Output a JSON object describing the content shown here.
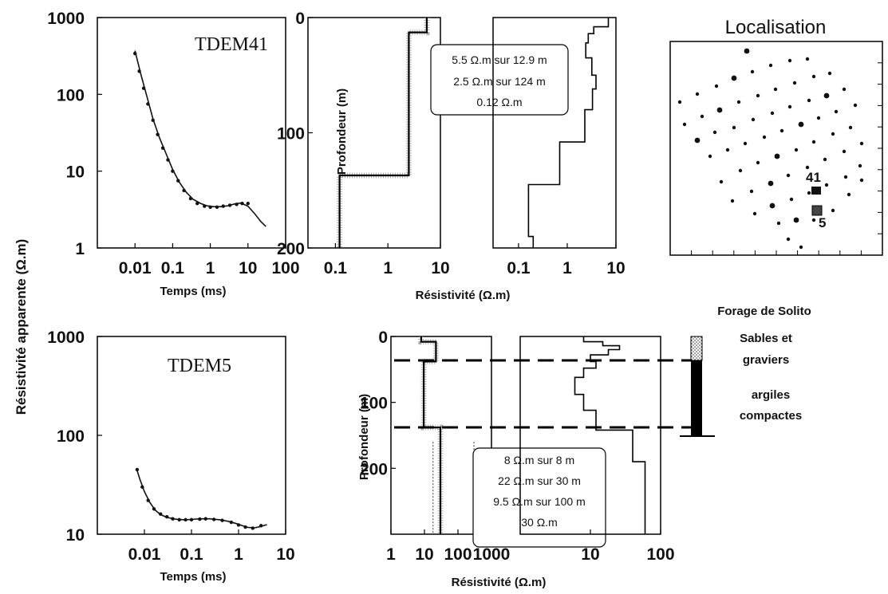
{
  "figure": {
    "ylabel_left": "Résistivité apparente (Ω.m)",
    "top_resistivity_label": "Résistivité  (Ω.m)",
    "bottom_resistivity_label": "Résistivité  (Ω.m)"
  },
  "localisation": {
    "title": "Localisation",
    "labels": [
      "41",
      "5"
    ]
  },
  "forage": {
    "title": "Forage de Solito",
    "layer1": [
      "Sables et",
      "graviers"
    ],
    "layer2": [
      "argiles",
      "compactes"
    ]
  },
  "chart_data": [
    {
      "id": "tdem41-sounding",
      "type": "line",
      "title": "TDEM41",
      "xlabel": "Temps (ms)",
      "ylabel": "Résistivité apparente (Ω.m)",
      "xscale": "log",
      "yscale": "log",
      "xlim": [
        0.001,
        100
      ],
      "ylim": [
        1,
        1000
      ],
      "xticks": [
        "0.01",
        "0.1",
        "1",
        "10",
        "100"
      ],
      "yticks": [
        "1",
        "10",
        "100",
        "1000"
      ],
      "series": [
        {
          "style": "points",
          "x": [
            0.01,
            0.013,
            0.017,
            0.022,
            0.03,
            0.04,
            0.055,
            0.075,
            0.1,
            0.14,
            0.2,
            0.3,
            0.45,
            0.7,
            1,
            1.5,
            2.2,
            3.3,
            5,
            7,
            10
          ],
          "y": [
            340,
            200,
            120,
            75,
            46,
            30,
            20,
            14,
            10,
            7.5,
            5.6,
            4.4,
            3.8,
            3.5,
            3.4,
            3.4,
            3.5,
            3.6,
            3.7,
            3.8,
            3.8
          ]
        },
        {
          "style": "line",
          "x": [
            0.01,
            0.014,
            0.02,
            0.03,
            0.045,
            0.07,
            0.1,
            0.15,
            0.23,
            0.35,
            0.55,
            0.8,
            1.2,
            2,
            3,
            4.5,
            6.5,
            10,
            15,
            22,
            30
          ],
          "y": [
            370,
            190,
            100,
            48,
            27,
            16,
            10.5,
            7.2,
            5.3,
            4.3,
            3.8,
            3.55,
            3.45,
            3.45,
            3.55,
            3.75,
            3.85,
            3.5,
            2.8,
            2.2,
            1.9
          ]
        }
      ]
    },
    {
      "id": "tdem41-model",
      "type": "line",
      "xlabel": "Résistivité  (Ω.m)",
      "ylabel": "Profondeur (m)",
      "xscale": "log",
      "xlim": [
        0.03,
        10
      ],
      "ylim": [
        200,
        0
      ],
      "xticks": [
        "0.1",
        "1",
        "10"
      ],
      "yticks": [
        "0",
        "100",
        "200"
      ],
      "annotation": [
        "5.5 Ω.m sur 12.9 m",
        "2.5 Ω.m sur 124 m",
        "0.12 Ω.m"
      ],
      "layers": [
        {
          "rho": 5.5,
          "top": 0,
          "bottom": 12.9
        },
        {
          "rho": 2.5,
          "top": 12.9,
          "bottom": 137
        },
        {
          "rho": 0.12,
          "top": 137,
          "bottom": 200
        }
      ]
    },
    {
      "id": "tdem41-multilayer",
      "type": "line",
      "xscale": "log",
      "xlim": [
        0.03,
        10
      ],
      "ylim": [
        200,
        0
      ],
      "xticks": [
        "0.1",
        "1",
        "10"
      ],
      "steps": [
        {
          "rho": 7,
          "top": 0,
          "bottom": 8
        },
        {
          "rho": 3.5,
          "top": 8,
          "bottom": 14
        },
        {
          "rho": 2.7,
          "top": 14,
          "bottom": 22
        },
        {
          "rho": 2.4,
          "top": 22,
          "bottom": 35
        },
        {
          "rho": 3.2,
          "top": 35,
          "bottom": 50
        },
        {
          "rho": 3.9,
          "top": 50,
          "bottom": 62
        },
        {
          "rho": 3.3,
          "top": 62,
          "bottom": 80
        },
        {
          "rho": 2.3,
          "top": 80,
          "bottom": 108
        },
        {
          "rho": 0.7,
          "top": 108,
          "bottom": 145
        },
        {
          "rho": 0.16,
          "top": 145,
          "bottom": 190
        },
        {
          "rho": 0.2,
          "top": 190,
          "bottom": 200
        }
      ]
    },
    {
      "id": "tdem5-sounding",
      "type": "line",
      "title": "TDEM5",
      "xlabel": "Temps (ms)",
      "ylabel": "Résistivité apparente (Ω.m)",
      "xscale": "log",
      "yscale": "log",
      "xlim": [
        0.001,
        10
      ],
      "ylim": [
        10,
        1000
      ],
      "xticks": [
        "0.01",
        "0.1",
        "1",
        "10"
      ],
      "yticks": [
        "10",
        "100",
        "1000"
      ],
      "series": [
        {
          "style": "points",
          "x": [
            0.007,
            0.009,
            0.012,
            0.016,
            0.022,
            0.03,
            0.04,
            0.055,
            0.075,
            0.1,
            0.15,
            0.2,
            0.3,
            0.45,
            0.7,
            1,
            1.4,
            2,
            3
          ],
          "y": [
            45,
            30,
            22,
            18,
            16,
            15,
            14.3,
            14,
            14,
            14,
            14.2,
            14.3,
            14.1,
            13.8,
            13.2,
            12.4,
            11.8,
            11.5,
            12.2
          ]
        },
        {
          "style": "line",
          "x": [
            0.007,
            0.008,
            0.01,
            0.013,
            0.017,
            0.022,
            0.03,
            0.045,
            0.07,
            0.1,
            0.15,
            0.25,
            0.4,
            0.6,
            0.9,
            1.2,
            1.6,
            2.2,
            3,
            4
          ],
          "y": [
            44,
            36,
            27,
            21,
            17.5,
            15.8,
            14.8,
            14.2,
            14,
            14.1,
            14.3,
            14.3,
            14,
            13.5,
            12.8,
            12.2,
            11.7,
            11.6,
            12,
            12.5
          ]
        }
      ]
    },
    {
      "id": "tdem5-model",
      "type": "line",
      "xlabel": "Résistivité  (Ω.m)",
      "ylabel": "Profondeur (m)",
      "xscale": "log",
      "xlim": [
        1,
        1000
      ],
      "ylim": [
        300,
        0
      ],
      "xticks": [
        "1",
        "10",
        "100",
        "1000"
      ],
      "yticks": [
        "0",
        "100",
        "200"
      ],
      "annotation": [
        "8 Ω.m sur 8 m",
        "22 Ω.m sur 30 m",
        "9.5 Ω.m sur 100 m",
        "30 Ω.m"
      ],
      "layers": [
        {
          "rho": 8,
          "top": 0,
          "bottom": 8
        },
        {
          "rho": 22,
          "top": 8,
          "bottom": 38
        },
        {
          "rho": 9.5,
          "top": 38,
          "bottom": 138
        },
        {
          "rho": 30,
          "top": 138,
          "bottom": 300
        }
      ]
    },
    {
      "id": "tdem5-multilayer",
      "type": "line",
      "xscale": "log",
      "xlim": [
        1,
        100
      ],
      "ylim": [
        300,
        0
      ],
      "xticks": [
        "10",
        "100"
      ],
      "steps": [
        {
          "rho": 8,
          "top": 0,
          "bottom": 8
        },
        {
          "rho": 15,
          "top": 8,
          "bottom": 14
        },
        {
          "rho": 26,
          "top": 14,
          "bottom": 20
        },
        {
          "rho": 18,
          "top": 20,
          "bottom": 28
        },
        {
          "rho": 10,
          "top": 28,
          "bottom": 38
        },
        {
          "rho": 12,
          "top": 38,
          "bottom": 48
        },
        {
          "rho": 8,
          "top": 48,
          "bottom": 62
        },
        {
          "rho": 6,
          "top": 62,
          "bottom": 88
        },
        {
          "rho": 8,
          "top": 88,
          "bottom": 112
        },
        {
          "rho": 12,
          "top": 112,
          "bottom": 142
        },
        {
          "rho": 40,
          "top": 142,
          "bottom": 190
        },
        {
          "rho": 60,
          "top": 190,
          "bottom": 300
        }
      ]
    }
  ]
}
